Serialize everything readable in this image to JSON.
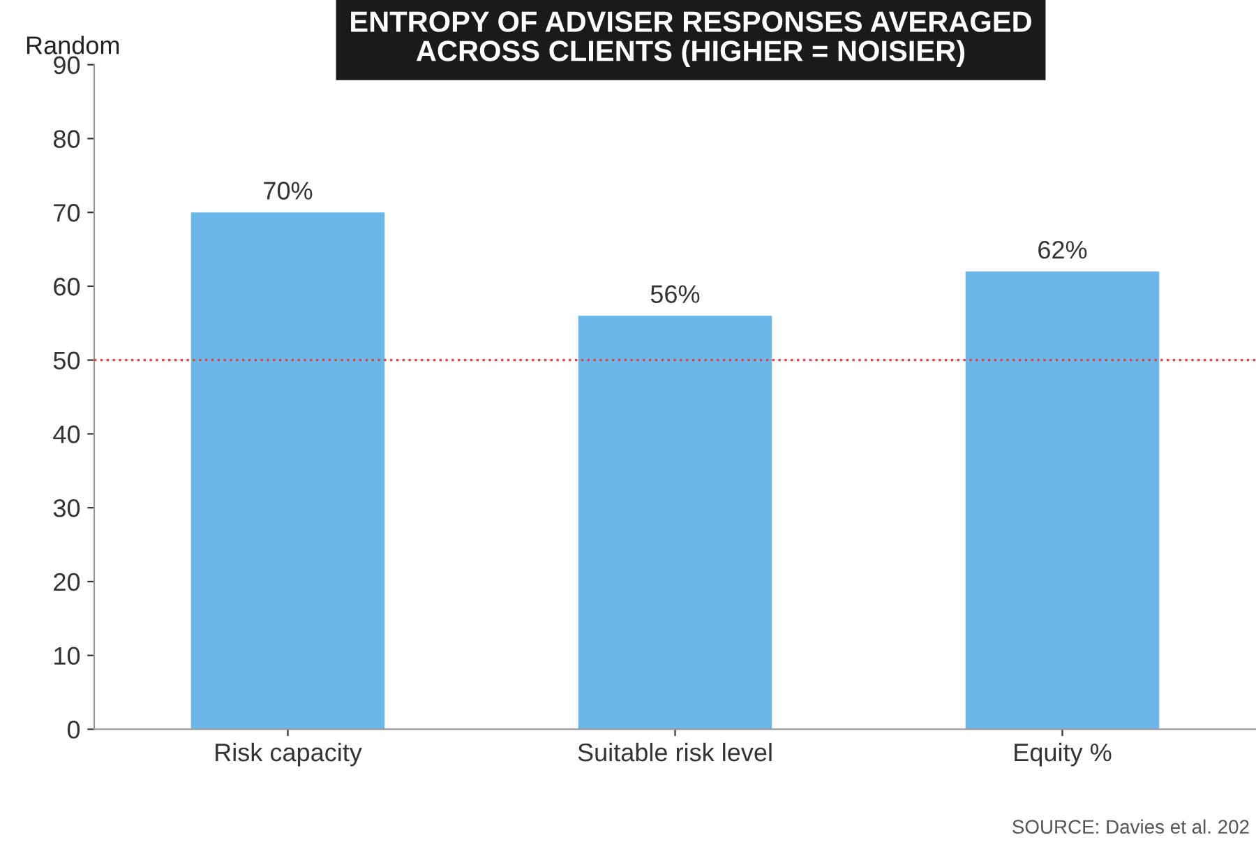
{
  "chart_data": {
    "type": "bar",
    "title": "ENTROPY OF ADVISER RESPONSES AVERAGED\nACROSS CLIENTS (HIGHER = NOISIER)",
    "ylabel": "Random",
    "categories": [
      "Risk capacity",
      "Suitable risk level",
      "Equity %"
    ],
    "values": [
      70,
      56,
      62
    ],
    "value_labels": [
      "70%",
      "56%",
      "62%"
    ],
    "color": "#6bb8e8",
    "ylim": [
      0,
      90
    ],
    "yticks": [
      0,
      10,
      20,
      30,
      40,
      50,
      60,
      70,
      80,
      90
    ],
    "grid": false,
    "ref_lines": [
      {
        "axis": "y",
        "value": 50,
        "color": "#e04040",
        "line_style": "dotted"
      }
    ],
    "annotations": [
      "SOURCE: Davies et al. 202"
    ]
  }
}
